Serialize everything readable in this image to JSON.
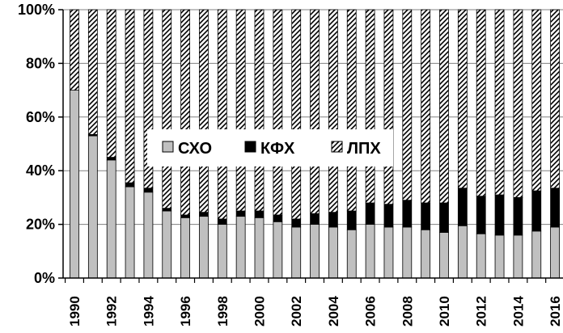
{
  "chart_data": {
    "type": "bar",
    "stacked": "percent",
    "title": "",
    "xlabel": "",
    "ylabel": "",
    "ylim": [
      0,
      100
    ],
    "yticks": [
      "0%",
      "20%",
      "40%",
      "60%",
      "80%",
      "100%"
    ],
    "grid": "horizontal",
    "legend_position": "center",
    "categories": [
      "1990",
      "1991",
      "1992",
      "1993",
      "1994",
      "1995",
      "1996",
      "1997",
      "1998",
      "1999",
      "2000",
      "2001",
      "2002",
      "2003",
      "2004",
      "2005",
      "2006",
      "2007",
      "2008",
      "2009",
      "2010",
      "2011",
      "2012",
      "2013",
      "2014",
      "2015",
      "2016"
    ],
    "xtick_labels": [
      "1990",
      "1992",
      "1994",
      "1996",
      "1998",
      "2000",
      "2002",
      "2004",
      "2006",
      "2008",
      "2010",
      "2012",
      "2014",
      "2016"
    ],
    "series": [
      {
        "name": "СХО",
        "color": "#c0c0c0",
        "pattern": "solid",
        "values": [
          70,
          53,
          44,
          34,
          32,
          25,
          22.5,
          23,
          20,
          23,
          22.5,
          21,
          19,
          20,
          19,
          18,
          20,
          19,
          19,
          18,
          17,
          19.5,
          16.5,
          16,
          16,
          17.5,
          19
        ]
      },
      {
        "name": "КФХ",
        "color": "#000000",
        "pattern": "solid",
        "values": [
          0,
          0.5,
          1,
          1.5,
          1.5,
          1,
          1,
          1.5,
          2,
          2,
          2.5,
          2.5,
          3,
          4,
          5.5,
          7,
          8,
          8.5,
          10,
          10,
          11,
          14,
          14,
          15,
          14,
          15,
          14.5
        ]
      },
      {
        "name": "ЛПХ",
        "color": "#ffffff",
        "pattern": "diagonal-hatch",
        "values": [
          30,
          46.5,
          55,
          64.5,
          66.5,
          74,
          76.5,
          75.5,
          78,
          75,
          75,
          76.5,
          78,
          76,
          75.5,
          75,
          72,
          72.5,
          71,
          72,
          72,
          66.5,
          69.5,
          69,
          70,
          67.5,
          66.5
        ]
      }
    ]
  }
}
